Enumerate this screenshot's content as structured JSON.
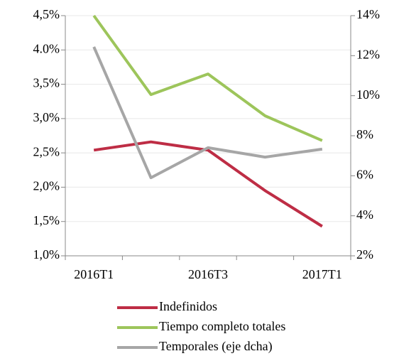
{
  "chart_data": {
    "type": "line",
    "categories": [
      "2016T1",
      null,
      "2016T3",
      null,
      "2017T1"
    ],
    "series": [
      {
        "name": "Indefinidos",
        "color": "#be2d45",
        "values": [
          2.54,
          2.66,
          2.54,
          1.95,
          1.43
        ]
      },
      {
        "name": "Tiempo completo totales",
        "color": "#9dc55b",
        "values": [
          4.5,
          3.35,
          3.65,
          3.04,
          2.68
        ]
      },
      {
        "name": "Temporales (eje dcha)",
        "color": "#a6a6a6",
        "axis": "y2",
        "values": [
          12.44,
          5.9,
          7.4,
          6.93,
          7.33
        ]
      }
    ],
    "ylim": [
      1.0,
      4.5
    ],
    "yticks": [
      {
        "value": 1.0,
        "label": "1,0%"
      },
      {
        "value": 1.5,
        "label": "1,5%"
      },
      {
        "value": 2.0,
        "label": "2,0%"
      },
      {
        "value": 2.5,
        "label": "2,5%"
      },
      {
        "value": 3.0,
        "label": "3,0%"
      },
      {
        "value": 3.5,
        "label": "3,5%"
      },
      {
        "value": 4.0,
        "label": "4.0%"
      },
      {
        "value": 4.5,
        "label": "4,5%"
      }
    ],
    "y2lim": [
      2,
      14
    ],
    "y2ticks": [
      {
        "value": 2,
        "label": "2%"
      },
      {
        "value": 4,
        "label": "4%"
      },
      {
        "value": 6,
        "label": "6%"
      },
      {
        "value": 8,
        "label": "8%"
      },
      {
        "value": 10,
        "label": "10%"
      },
      {
        "value": 12,
        "label": "12%"
      },
      {
        "value": 14,
        "label": "14%"
      }
    ],
    "grid": true
  }
}
